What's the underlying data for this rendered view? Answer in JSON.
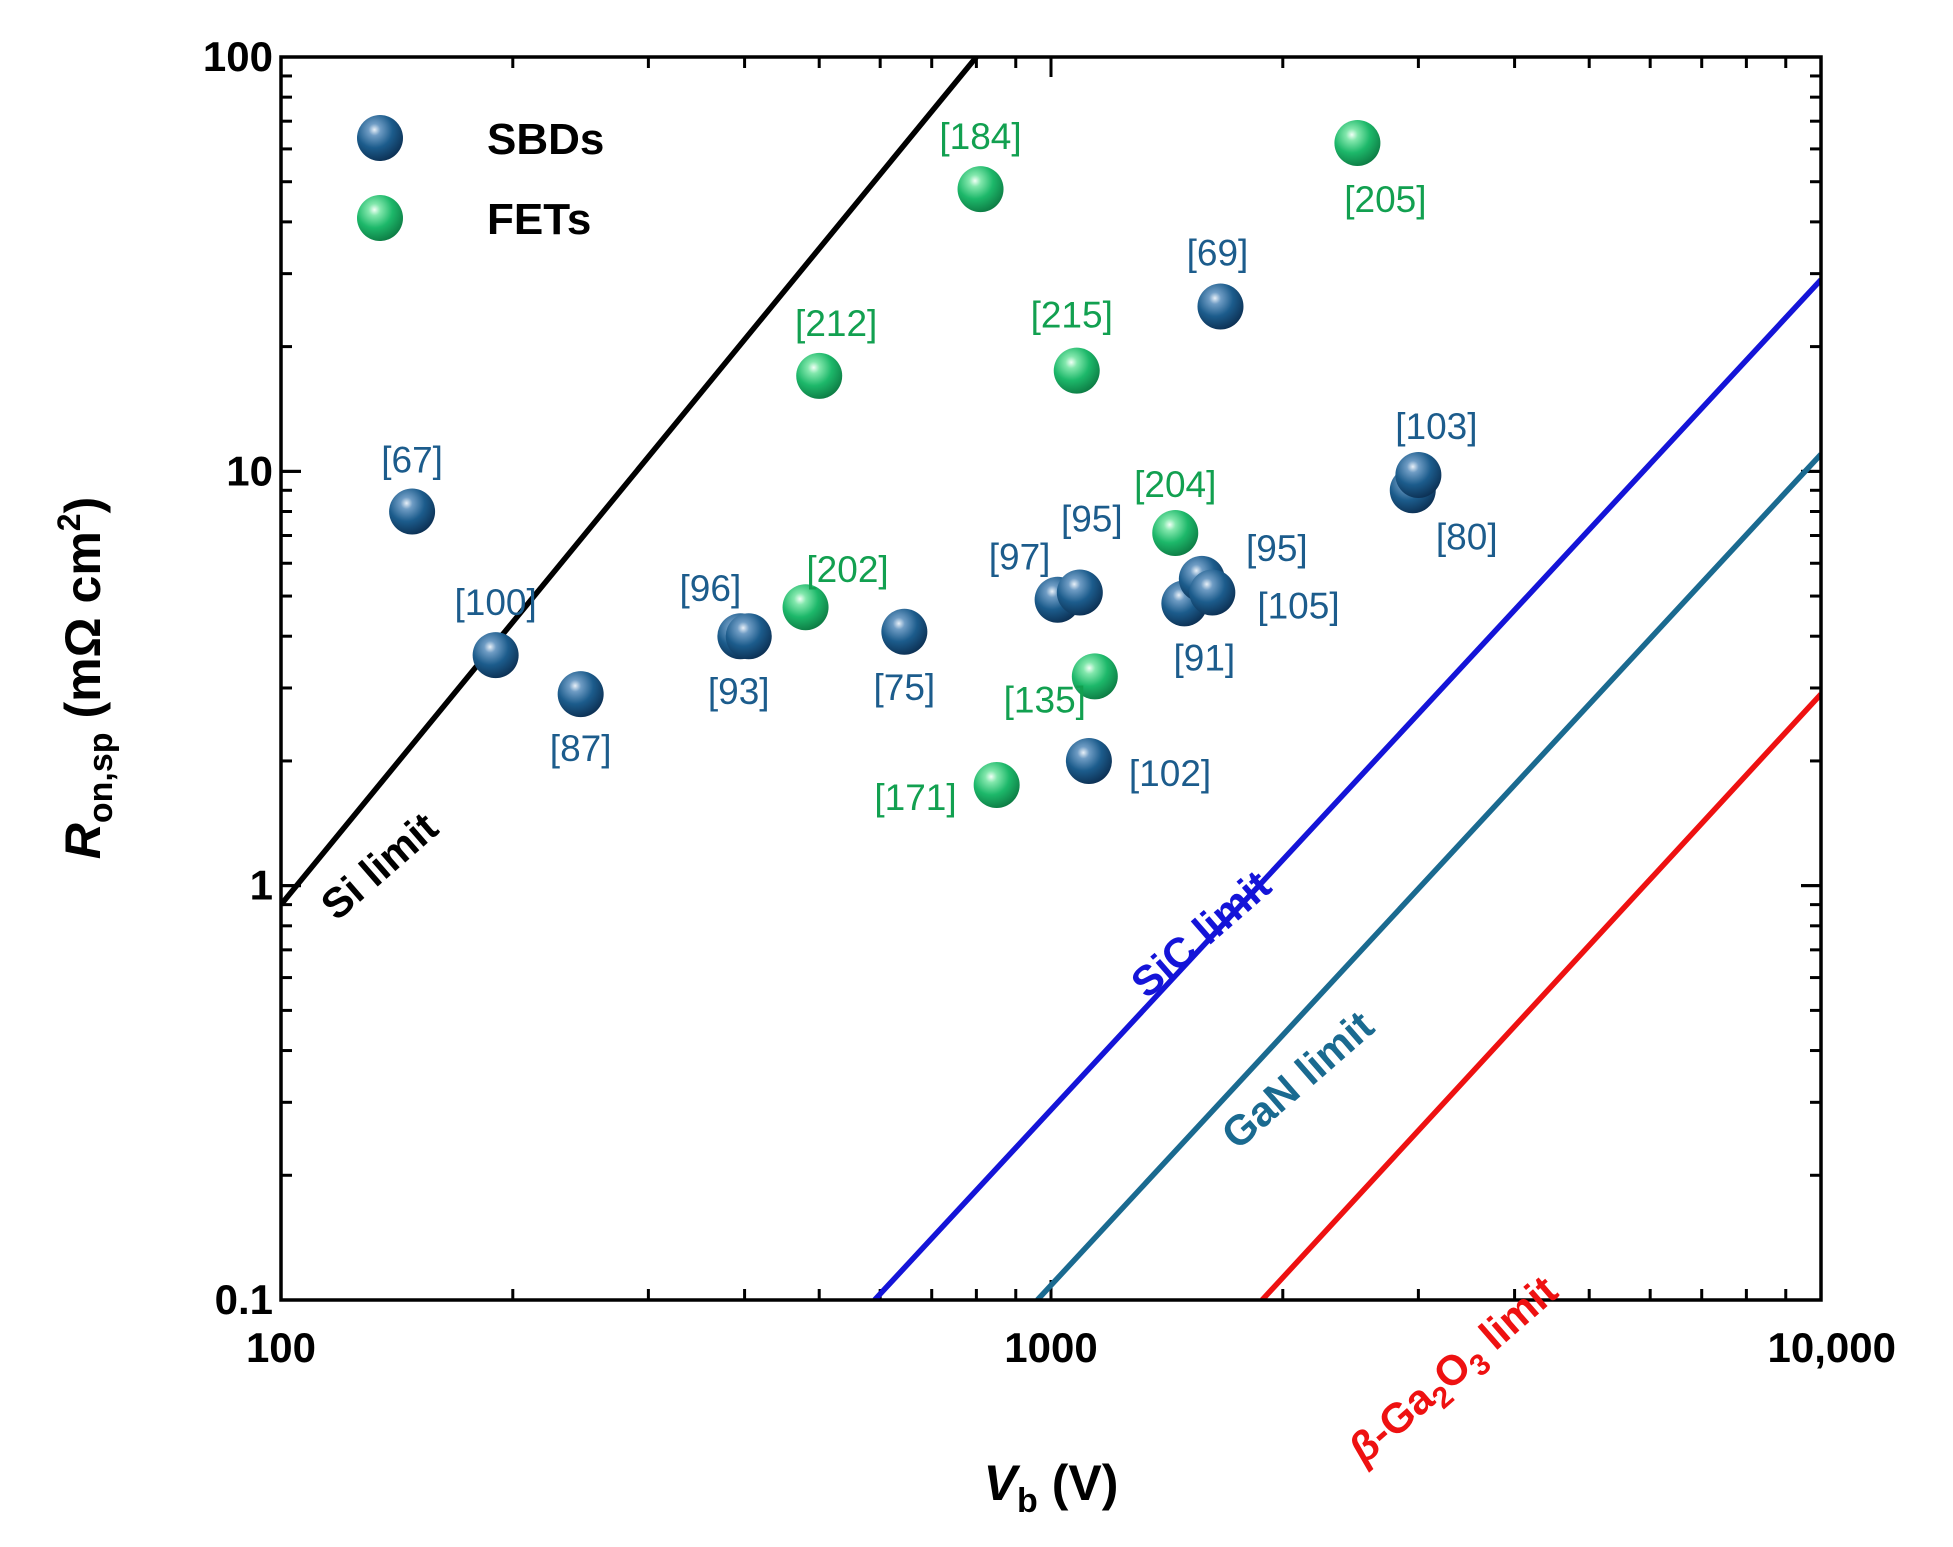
{
  "chart_data": {
    "type": "scatter",
    "xlabel": {
      "main": "V",
      "sub": "b",
      "unit": " (V)"
    },
    "ylabel": {
      "main": "R",
      "sub": "on,sp",
      "unit": " (mΩ cm",
      "sup": "2",
      "close": ")"
    },
    "xscale": "log",
    "yscale": "log",
    "xlim": [
      100,
      10000
    ],
    "ylim": [
      0.1,
      100
    ],
    "x_ticks": [
      {
        "value": 100,
        "label": "100"
      },
      {
        "value": 1000,
        "label": "1000"
      },
      {
        "value": 10000,
        "label": "10,000"
      }
    ],
    "y_ticks": [
      {
        "value": 0.1,
        "label": "0.1"
      },
      {
        "value": 1,
        "label": "1"
      },
      {
        "value": 10,
        "label": "10"
      },
      {
        "value": 100,
        "label": "100"
      }
    ],
    "legend": [
      {
        "name": "SBDs",
        "color": "#1c5c8c"
      },
      {
        "name": "FETs",
        "color": "#1db86a"
      }
    ],
    "limits": [
      {
        "name": "Si limit",
        "label": "Si limit",
        "color": "#000000",
        "points": [
          [
            100,
            0.9
          ],
          [
            800,
            100
          ]
        ]
      },
      {
        "name": "SiC limit",
        "label": "SiC limit",
        "color": "#1414d8",
        "points": [
          [
            590,
            0.1
          ],
          [
            10000,
            29
          ]
        ]
      },
      {
        "name": "GaN limit",
        "label": "GaN limit",
        "color": "#1a6a90",
        "points": [
          [
            960,
            0.1
          ],
          [
            10000,
            11
          ]
        ]
      },
      {
        "name": "β-Ga2O3 limit",
        "label_parts": [
          "β",
          "-Ga",
          "2",
          "O",
          "3",
          " limit"
        ],
        "color": "#ee1111",
        "points": [
          [
            1880,
            0.1
          ],
          [
            10000,
            2.9
          ]
        ]
      }
    ],
    "series": [
      {
        "name": "SBDs",
        "color": "#1c5c8c",
        "points": [
          {
            "x": 148,
            "y": 8.0,
            "ref": "[67]"
          },
          {
            "x": 190,
            "y": 3.6,
            "ref": "[100]"
          },
          {
            "x": 245,
            "y": 2.9,
            "ref": "[87]"
          },
          {
            "x": 395,
            "y": 4.0,
            "ref": "[96]"
          },
          {
            "x": 405,
            "y": 4.0,
            "ref": "[93]"
          },
          {
            "x": 645,
            "y": 4.1,
            "ref": "[75]"
          },
          {
            "x": 1020,
            "y": 4.9,
            "ref": "[97]"
          },
          {
            "x": 1090,
            "y": 5.1,
            "ref": "[95]"
          },
          {
            "x": 1120,
            "y": 2.0,
            "ref": "[102]"
          },
          {
            "x": 1490,
            "y": 4.8,
            "ref": "[91]"
          },
          {
            "x": 1570,
            "y": 5.5,
            "ref": "[95]"
          },
          {
            "x": 1620,
            "y": 5.1,
            "ref": "[105]"
          },
          {
            "x": 1660,
            "y": 25,
            "ref": "[69]"
          },
          {
            "x": 2950,
            "y": 9.0,
            "ref": "[80]"
          },
          {
            "x": 3000,
            "y": 9.8,
            "ref": "[103]"
          }
        ]
      },
      {
        "name": "FETs",
        "color": "#1db86a",
        "points": [
          {
            "x": 480,
            "y": 4.7,
            "ref": "[202]"
          },
          {
            "x": 500,
            "y": 17,
            "ref": "[212]"
          },
          {
            "x": 810,
            "y": 48,
            "ref": "[184]"
          },
          {
            "x": 850,
            "y": 1.75,
            "ref": "[171]"
          },
          {
            "x": 1080,
            "y": 17.5,
            "ref": "[215]"
          },
          {
            "x": 1140,
            "y": 3.2,
            "ref": "[135]"
          },
          {
            "x": 1450,
            "y": 7.1,
            "ref": "[204]"
          },
          {
            "x": 2500,
            "y": 62,
            "ref": "[205]"
          }
        ]
      }
    ]
  },
  "colors": {
    "sbd_label": "#1c5c8c",
    "fet_label": "#12a050"
  }
}
